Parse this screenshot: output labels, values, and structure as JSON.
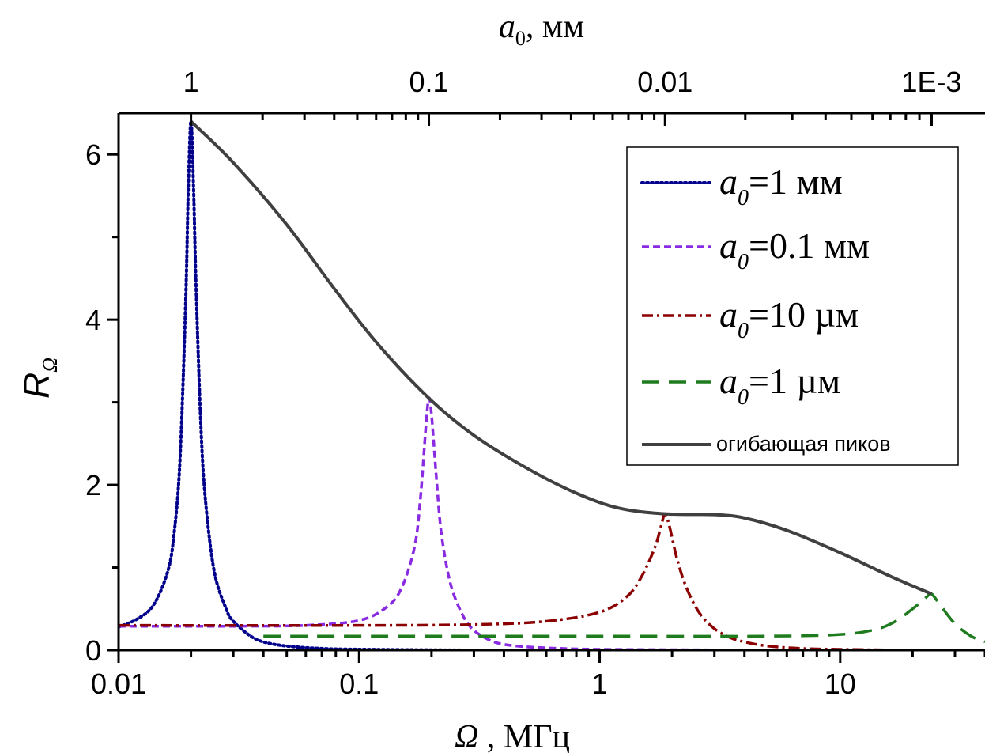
{
  "chart_data": {
    "type": "line",
    "x_axis": {
      "label": "Ω, МГц",
      "scale": "log",
      "range": [
        0.01,
        40
      ],
      "tick_labels": [
        "0.01",
        "0.1",
        "1",
        "10"
      ],
      "tick_values": [
        0.01,
        0.1,
        1,
        10
      ]
    },
    "top_axis": {
      "label": "a₀, мм",
      "scale": "log",
      "tick_labels": [
        "1",
        "0.1",
        "0.01",
        "1E-3"
      ],
      "tick_positions_bottom_axis": [
        0.02,
        0.195,
        1.87,
        24
      ]
    },
    "y_axis": {
      "label": "RΩ",
      "range": [
        0,
        6.5
      ],
      "tick_labels": [
        "0",
        "2",
        "4",
        "6"
      ],
      "tick_values": [
        0,
        2,
        4,
        6
      ]
    },
    "legend": {
      "position": "top-right",
      "entries": [
        {
          "prefix": "a",
          "subscript": "0",
          "text": "=1 мм"
        },
        {
          "prefix": "a",
          "subscript": "0",
          "text": "=0.1 мм"
        },
        {
          "prefix": "a",
          "subscript": "0",
          "text": "=10 µм"
        },
        {
          "prefix": "a",
          "subscript": "0",
          "text": "=1 µм"
        },
        {
          "prefix": "",
          "subscript": "",
          "text": "огибающая пиков"
        }
      ]
    },
    "series": [
      {
        "color": "#00008B",
        "dash": "dotted",
        "x": [
          0.01,
          0.012,
          0.014,
          0.016,
          0.017,
          0.018,
          0.019,
          0.0195,
          0.02,
          0.0205,
          0.021,
          0.022,
          0.023,
          0.025,
          0.028,
          0.03,
          0.035,
          0.04,
          0.05,
          0.07,
          0.1,
          0.3,
          1,
          3,
          10,
          40
        ],
        "y": [
          0.28,
          0.38,
          0.55,
          0.95,
          1.4,
          2.3,
          4.2,
          5.6,
          6.4,
          5.6,
          4.4,
          2.7,
          1.8,
          0.95,
          0.5,
          0.35,
          0.18,
          0.1,
          0.05,
          0.02,
          0.01,
          0.0,
          0.0,
          0.0,
          0.0,
          0.0
        ]
      },
      {
        "color": "#8A2BE2",
        "dash": "short-dash",
        "x": [
          0.01,
          0.03,
          0.06,
          0.1,
          0.13,
          0.15,
          0.17,
          0.18,
          0.19,
          0.195,
          0.2,
          0.21,
          0.22,
          0.24,
          0.27,
          0.3,
          0.35,
          0.4,
          0.5,
          0.7,
          1,
          2,
          5,
          10,
          40
        ],
        "y": [
          0.29,
          0.29,
          0.3,
          0.36,
          0.52,
          0.75,
          1.25,
          1.85,
          2.75,
          3.05,
          2.85,
          2.05,
          1.4,
          0.8,
          0.42,
          0.24,
          0.12,
          0.07,
          0.04,
          0.02,
          0.01,
          0.005,
          0.0,
          0.0,
          0.0
        ]
      },
      {
        "color": "#8B0000",
        "dash": "dash-dot",
        "x": [
          0.01,
          0.1,
          0.3,
          0.6,
          1,
          1.3,
          1.5,
          1.7,
          1.8,
          1.87,
          1.95,
          2.1,
          2.3,
          2.6,
          3,
          3.5,
          4,
          5,
          7,
          10,
          20,
          40
        ],
        "y": [
          0.3,
          0.3,
          0.31,
          0.35,
          0.46,
          0.65,
          0.9,
          1.25,
          1.5,
          1.65,
          1.5,
          1.1,
          0.75,
          0.45,
          0.26,
          0.15,
          0.1,
          0.05,
          0.02,
          0.01,
          0.0,
          0.0
        ]
      },
      {
        "color": "#1E7B1E",
        "dash": "long-dash",
        "x": [
          0.04,
          0.1,
          1,
          5,
          10,
          14,
          17,
          20,
          22,
          23,
          24,
          26,
          30,
          35,
          40
        ],
        "y": [
          0.17,
          0.17,
          0.17,
          0.17,
          0.19,
          0.25,
          0.35,
          0.5,
          0.6,
          0.65,
          0.68,
          0.55,
          0.32,
          0.17,
          0.1
        ]
      },
      {
        "color": "#404040",
        "dash": "solid",
        "x": [
          0.02,
          0.03,
          0.05,
          0.08,
          0.12,
          0.195,
          0.3,
          0.5,
          0.8,
          1.2,
          1.87,
          3,
          4,
          6,
          10,
          16,
          24
        ],
        "y": [
          6.4,
          5.9,
          5.15,
          4.35,
          3.7,
          3.05,
          2.6,
          2.2,
          1.9,
          1.72,
          1.65,
          1.64,
          1.6,
          1.45,
          1.18,
          0.9,
          0.68
        ]
      }
    ]
  }
}
